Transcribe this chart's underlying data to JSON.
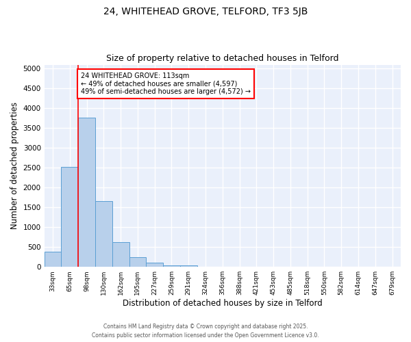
{
  "title1": "24, WHITEHEAD GROVE, TELFORD, TF3 5JB",
  "title2": "Size of property relative to detached houses in Telford",
  "xlabel": "Distribution of detached houses by size in Telford",
  "ylabel": "Number of detached properties",
  "bin_labels": [
    "33sqm",
    "65sqm",
    "98sqm",
    "130sqm",
    "162sqm",
    "195sqm",
    "227sqm",
    "259sqm",
    "291sqm",
    "324sqm",
    "356sqm",
    "388sqm",
    "421sqm",
    "453sqm",
    "485sqm",
    "518sqm",
    "550sqm",
    "582sqm",
    "614sqm",
    "647sqm",
    "679sqm"
  ],
  "bar_values": [
    390,
    2530,
    3770,
    1660,
    620,
    240,
    110,
    45,
    35,
    0,
    0,
    0,
    0,
    0,
    0,
    0,
    0,
    0,
    0,
    0,
    0
  ],
  "bar_color": "#b8d0eb",
  "bar_edge_color": "#5a9fd4",
  "red_line_bin_idx": 2,
  "annotation_text": "24 WHITEHEAD GROVE: 113sqm\n← 49% of detached houses are smaller (4,597)\n49% of semi-detached houses are larger (4,572) →",
  "annotation_box_color": "white",
  "annotation_box_edge_color": "red",
  "ylim": [
    0,
    5100
  ],
  "yticks": [
    0,
    500,
    1000,
    1500,
    2000,
    2500,
    3000,
    3500,
    4000,
    4500,
    5000
  ],
  "background_color": "#eaf0fb",
  "grid_color": "white",
  "footer_line1": "Contains HM Land Registry data © Crown copyright and database right 2025.",
  "footer_line2": "Contains public sector information licensed under the Open Government Licence v3.0."
}
